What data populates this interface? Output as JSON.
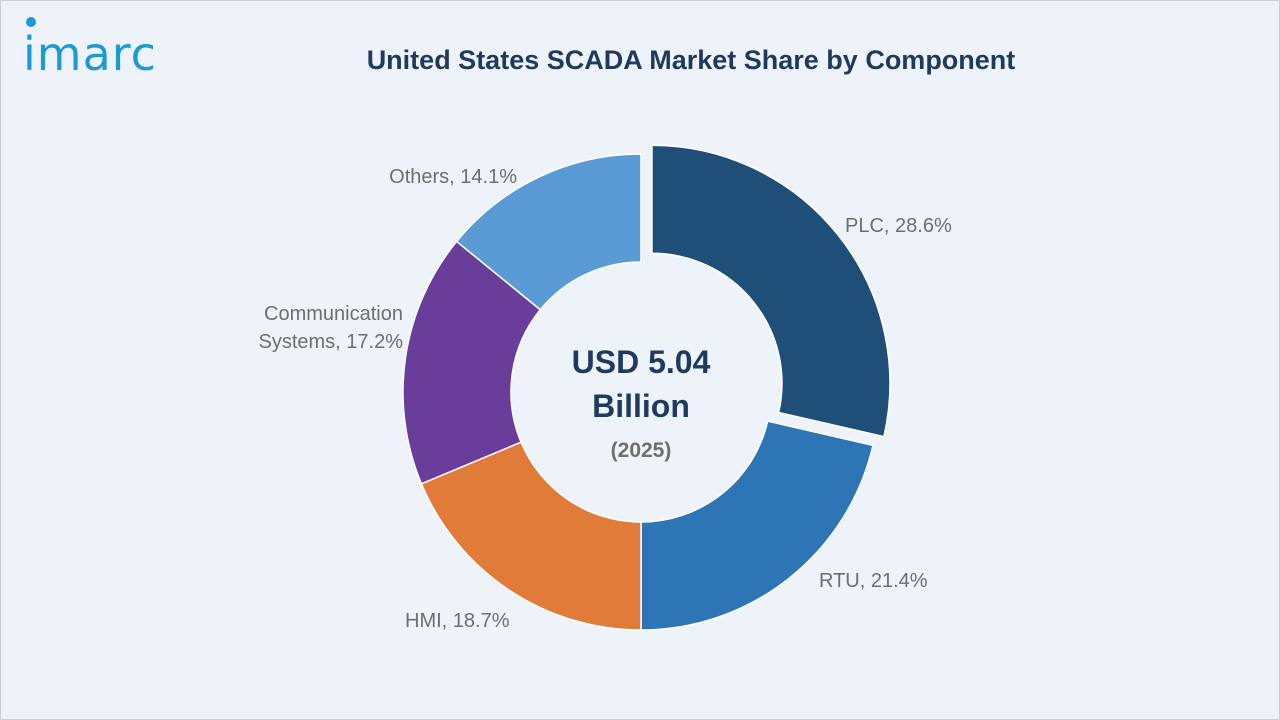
{
  "header": {
    "logo_text": "imarc",
    "title": "United States SCADA Market Share by Component"
  },
  "chart_data": {
    "type": "pie",
    "variant": "donut",
    "title": "United States SCADA Market Share by Component",
    "center": {
      "line1": "USD 5.04",
      "line2": "Billion",
      "line3": "(2025)"
    },
    "slices": [
      {
        "name": "PLC",
        "value": 28.6,
        "label": "PLC, 28.6%",
        "color": "#1f4e79",
        "exploded": true
      },
      {
        "name": "RTU",
        "value": 21.4,
        "label": "RTU, 21.4%",
        "color": "#2e75b6",
        "exploded": false
      },
      {
        "name": "HMI",
        "value": 18.7,
        "label": "HMI, 18.7%",
        "color": "#e07b39",
        "exploded": false
      },
      {
        "name": "Communication Systems",
        "value": 17.2,
        "label_lines": [
          "Communication",
          "Systems, 17.2%"
        ],
        "color": "#6a3d9a",
        "exploded": false
      },
      {
        "name": "Others",
        "value": 14.1,
        "label": "Others, 14.1%",
        "color": "#5b9bd5",
        "exploded": false
      }
    ]
  }
}
